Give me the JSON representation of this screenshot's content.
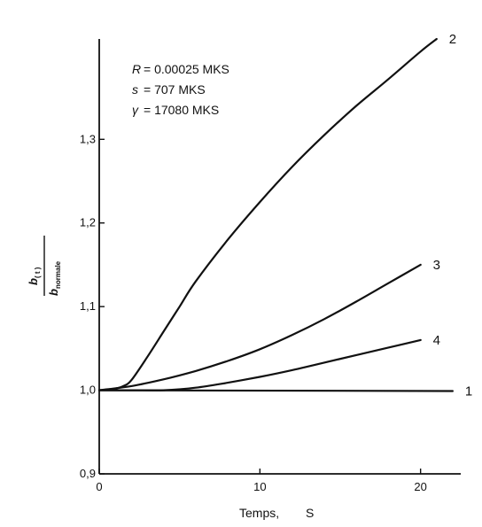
{
  "chart_data": {
    "type": "line",
    "xlabel": "Temps,",
    "xunit": "S",
    "ylabel": {
      "numerator_main": "b",
      "numerator_sub": "( t )",
      "denominator_main": "b",
      "denominator_sub": "normale"
    },
    "xlim": [
      0,
      22.5
    ],
    "ylim": [
      0.9,
      1.42
    ],
    "x_ticks": [
      0,
      10,
      20
    ],
    "x_tick_labels": [
      "0",
      "10",
      "20"
    ],
    "y_ticks": [
      0.9,
      1.0,
      1.1,
      1.2,
      1.3
    ],
    "y_tick_labels": [
      "0,9",
      "1,0",
      "1,1",
      "1,2",
      "1,3"
    ],
    "grid": false,
    "legend": "none",
    "parameters": [
      {
        "symbol": "R",
        "value": "= 0.00025 MKS"
      },
      {
        "symbol": "s",
        "value": "= 707 MKS"
      },
      {
        "symbol": "γ",
        "value": "= 17080 MKS"
      }
    ],
    "series": [
      {
        "label": "2",
        "x": [
          0,
          1,
          1.5,
          2,
          3,
          4,
          5,
          6,
          8,
          10,
          12,
          14,
          16,
          18,
          20,
          21
        ],
        "y": [
          1.0,
          1.002,
          1.005,
          1.012,
          1.04,
          1.07,
          1.1,
          1.13,
          1.18,
          1.225,
          1.267,
          1.305,
          1.34,
          1.372,
          1.405,
          1.42
        ]
      },
      {
        "label": "3",
        "x": [
          0,
          2,
          4,
          6,
          8,
          10,
          12,
          14,
          16,
          18,
          20
        ],
        "y": [
          1.0,
          1.005,
          1.013,
          1.023,
          1.035,
          1.049,
          1.066,
          1.085,
          1.106,
          1.128,
          1.15
        ]
      },
      {
        "label": "4",
        "x": [
          0,
          2,
          4,
          6,
          8,
          10,
          12,
          14,
          16,
          18,
          20
        ],
        "y": [
          1.0,
          1.0,
          1.0,
          1.003,
          1.009,
          1.016,
          1.024,
          1.033,
          1.042,
          1.051,
          1.06
        ]
      },
      {
        "label": "1",
        "x": [
          0,
          22
        ],
        "y": [
          1.0,
          0.999
        ]
      }
    ]
  }
}
